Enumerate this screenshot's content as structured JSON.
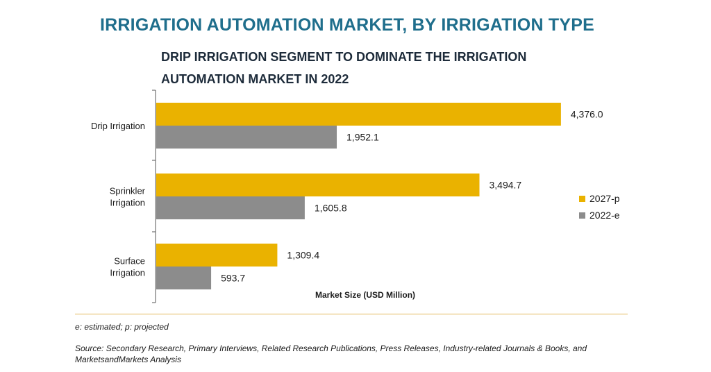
{
  "chart_data": {
    "type": "bar",
    "orientation": "horizontal",
    "title": "IRRIGATION AUTOMATION MARKET, BY IRRIGATION TYPE",
    "subtitle": "DRIP IRRIGATION SEGMENT TO DOMINATE THE IRRIGATION AUTOMATION MARKET IN 2022",
    "xlabel": "Market Size (USD Million)",
    "ylabel": "",
    "categories": [
      [
        "Drip Irrigation"
      ],
      [
        "Sprinkler",
        "Irrigation"
      ],
      [
        "Surface",
        "Irrigation"
      ]
    ],
    "series": [
      {
        "name": "2027-p",
        "color": "#eab200",
        "values": [
          4376.0,
          3494.7,
          1309.4
        ],
        "labels": [
          "4,376.0",
          "3,494.7",
          "1,309.4"
        ]
      },
      {
        "name": "2022-e",
        "color": "#8c8c8c",
        "values": [
          1952.1,
          1605.8,
          593.7
        ],
        "labels": [
          "1,952.1",
          "1,605.8",
          "593.7"
        ]
      }
    ],
    "xlim": [
      0,
      5000
    ],
    "grid": false,
    "legend_position": "right"
  },
  "footnote": "e: estimated; p: projected",
  "source": "Source: Secondary Research, Primary Interviews, Related Research Publications, Press Releases, Industry-related Journals & Books, and MarketsandMarkets Analysis"
}
